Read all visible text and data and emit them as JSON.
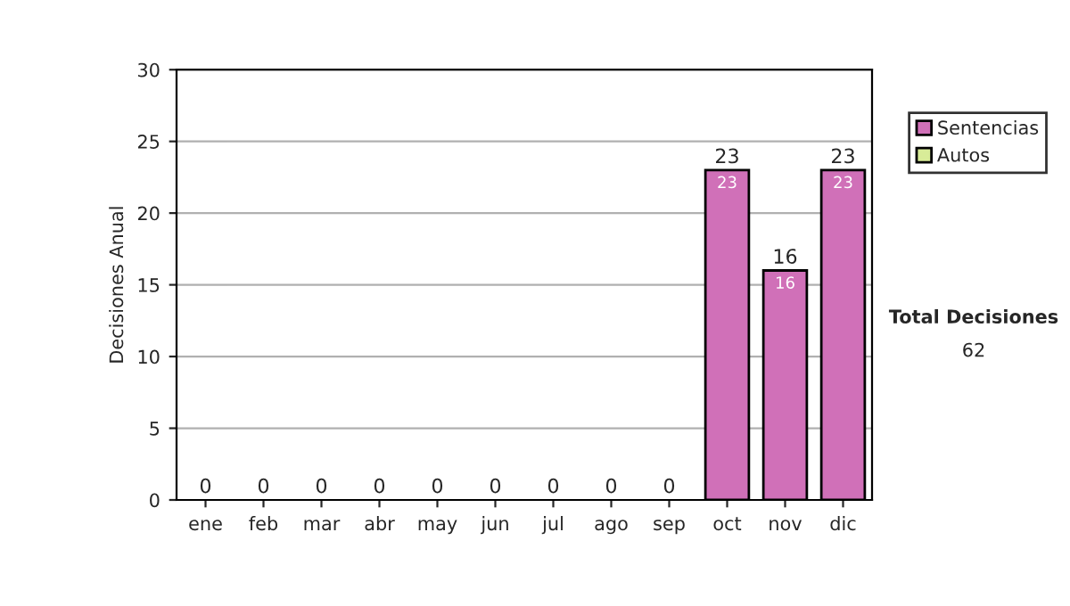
{
  "chart_data": {
    "type": "bar",
    "stacked": true,
    "ylabel": "Decisiones Anual",
    "categories": [
      "ene",
      "feb",
      "mar",
      "abr",
      "may",
      "jun",
      "jul",
      "ago",
      "sep",
      "oct",
      "nov",
      "dic"
    ],
    "series": [
      {
        "name": "Sentencias",
        "color": "#d070b8",
        "values": [
          0,
          0,
          0,
          0,
          0,
          0,
          0,
          0,
          0,
          23,
          16,
          23
        ],
        "value_labels": [
          null,
          null,
          null,
          null,
          null,
          null,
          null,
          null,
          null,
          "23",
          "16",
          "23"
        ]
      },
      {
        "name": "Autos",
        "color": "#d8ec98",
        "values": [
          0,
          0,
          0,
          0,
          0,
          0,
          0,
          0,
          0,
          0,
          0,
          0
        ]
      }
    ],
    "totals": [
      "0",
      "0",
      "0",
      "0",
      "0",
      "0",
      "0",
      "0",
      "0",
      "23",
      "16",
      "23"
    ],
    "ylim": [
      0,
      30
    ],
    "yticks": [
      0,
      5,
      10,
      15,
      20,
      25,
      30
    ],
    "grid": "y",
    "legend": "right",
    "annotations": [
      "Total Decisiones",
      "62"
    ]
  }
}
